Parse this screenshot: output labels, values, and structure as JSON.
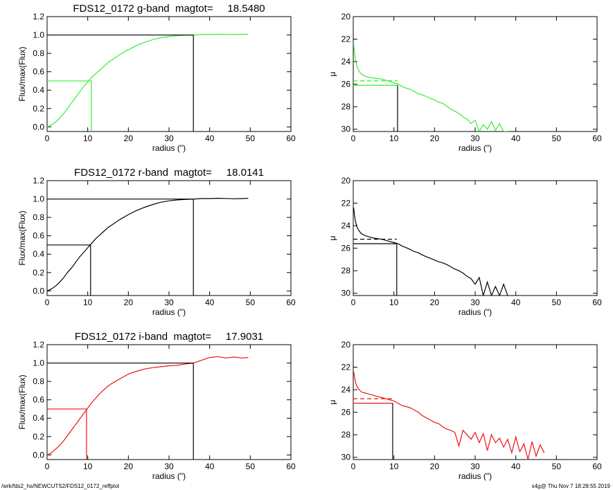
{
  "footer": {
    "left": "/wrk/fds2_hs/NEWCUTS2/FDS12_0172_reffplot",
    "right": "s4g@  Thu Nov  7 18:28:55 2019"
  },
  "chart_data": [
    {
      "type": "line",
      "panel": "growth",
      "band": "g",
      "color": "#33ee33",
      "title": "FDS12_0172 g-band  magtot=     18.5480",
      "xlabel": "radius (\")",
      "ylabel": "Flux/max(Flux)",
      "xlim": [
        0,
        60
      ],
      "ylim": [
        -0.05,
        1.2
      ],
      "xticks": [
        0,
        10,
        20,
        30,
        40,
        50,
        60
      ],
      "yticks": [
        0.0,
        0.2,
        0.4,
        0.6,
        0.8,
        1.0,
        1.2
      ],
      "series": [
        {
          "x": [
            0,
            1,
            2,
            3,
            4,
            5,
            6,
            7,
            8,
            9,
            10,
            11,
            12,
            13,
            14,
            15,
            16,
            18,
            20,
            22,
            24,
            26,
            28,
            30,
            32,
            34,
            36,
            38,
            40,
            42,
            44,
            46,
            48,
            49.5
          ],
          "y": [
            0,
            0.02,
            0.05,
            0.09,
            0.14,
            0.2,
            0.26,
            0.32,
            0.38,
            0.44,
            0.49,
            0.54,
            0.58,
            0.62,
            0.66,
            0.7,
            0.73,
            0.79,
            0.84,
            0.885,
            0.92,
            0.95,
            0.97,
            0.985,
            0.993,
            0.998,
            1.0,
            1.005,
            1.005,
            1.008,
            1.006,
            1.005,
            1.007,
            1.008
          ]
        }
      ],
      "guides": {
        "r_half": 10.9,
        "half": 0.5,
        "r_tot": 36.0,
        "tot": 1.0
      }
    },
    {
      "type": "line",
      "panel": "profile",
      "band": "g",
      "color": "#33ee33",
      "xlabel": "radius (\")",
      "ylabel": "μ",
      "xlim": [
        0,
        60
      ],
      "ylim": [
        30.2,
        20
      ],
      "xticks": [
        0,
        10,
        20,
        30,
        40,
        50,
        60
      ],
      "yticks": [
        20,
        22,
        24,
        26,
        28,
        30
      ],
      "series": [
        {
          "x": [
            0.1,
            0.3,
            0.6,
            1,
            1.5,
            2,
            3,
            4,
            5,
            6,
            7,
            8,
            9,
            10,
            11,
            12,
            13,
            14,
            15,
            16,
            17,
            18,
            19,
            20,
            21,
            22,
            23,
            24,
            25,
            26,
            27,
            28,
            29,
            30,
            31,
            32,
            33,
            34,
            35,
            36,
            37,
            38
          ],
          "y": [
            22.5,
            23.3,
            23.9,
            24.5,
            24.9,
            25.1,
            25.3,
            25.4,
            25.45,
            25.5,
            25.55,
            25.65,
            25.75,
            25.9,
            26.0,
            26.2,
            26.35,
            26.45,
            26.65,
            26.85,
            26.95,
            27.1,
            27.25,
            27.4,
            27.6,
            27.7,
            27.95,
            28.2,
            28.4,
            28.6,
            28.9,
            29.1,
            29.5,
            29.2,
            30.2,
            29.6,
            30.0,
            29.3,
            30.1,
            29.5,
            30.2,
            30.2
          ]
        }
      ],
      "guides": {
        "r_eff": 10.9,
        "mu_eff": 26.1,
        "mu_mean": 25.7
      }
    },
    {
      "type": "line",
      "panel": "growth",
      "band": "r",
      "color": "#000000",
      "title": "FDS12_0172 r-band  magtot=     18.0141",
      "xlabel": "radius (\")",
      "ylabel": "Flux/max(Flux)",
      "xlim": [
        0,
        60
      ],
      "ylim": [
        -0.05,
        1.2
      ],
      "xticks": [
        0,
        10,
        20,
        30,
        40,
        50,
        60
      ],
      "yticks": [
        0.0,
        0.2,
        0.4,
        0.6,
        0.8,
        1.0,
        1.2
      ],
      "series": [
        {
          "x": [
            0,
            1,
            2,
            3,
            4,
            5,
            6,
            7,
            8,
            9,
            10,
            11,
            12,
            13,
            14,
            15,
            16,
            18,
            20,
            22,
            24,
            26,
            28,
            30,
            32,
            34,
            36,
            38,
            40,
            42,
            44,
            46,
            48,
            49.5
          ],
          "y": [
            0,
            0.02,
            0.05,
            0.09,
            0.14,
            0.2,
            0.25,
            0.31,
            0.37,
            0.42,
            0.47,
            0.52,
            0.57,
            0.61,
            0.65,
            0.69,
            0.72,
            0.78,
            0.83,
            0.875,
            0.91,
            0.94,
            0.965,
            0.98,
            0.99,
            0.995,
            1.0,
            1.005,
            1.005,
            1.008,
            1.006,
            1.003,
            1.005,
            1.008
          ]
        }
      ],
      "guides": {
        "r_half": 10.7,
        "half": 0.5,
        "r_tot": 36.0,
        "tot": 1.0
      }
    },
    {
      "type": "line",
      "panel": "profile",
      "band": "r",
      "color": "#000000",
      "xlabel": "radius (\")",
      "ylabel": "μ",
      "xlim": [
        0,
        60
      ],
      "ylim": [
        30.2,
        20
      ],
      "xticks": [
        0,
        10,
        20,
        30,
        40,
        50,
        60
      ],
      "yticks": [
        20,
        22,
        24,
        26,
        28,
        30
      ],
      "series": [
        {
          "x": [
            0.1,
            0.3,
            0.6,
            1,
            1.5,
            2,
            3,
            4,
            5,
            6,
            7,
            8,
            9,
            10,
            11,
            12,
            13,
            14,
            15,
            16,
            17,
            18,
            19,
            20,
            21,
            22,
            23,
            24,
            25,
            26,
            27,
            28,
            29,
            30,
            31,
            32,
            33,
            34,
            35,
            36,
            37,
            38
          ],
          "y": [
            22.4,
            23.1,
            23.7,
            24.2,
            24.5,
            24.7,
            24.9,
            25.0,
            25.1,
            25.15,
            25.2,
            25.3,
            25.4,
            25.5,
            25.6,
            25.8,
            25.95,
            26.1,
            26.3,
            26.4,
            26.6,
            26.75,
            26.9,
            27.05,
            27.2,
            27.3,
            27.45,
            27.65,
            27.85,
            28.0,
            28.2,
            28.5,
            28.7,
            29.2,
            28.6,
            30.2,
            29.0,
            30.2,
            29.4,
            30.2,
            29.2,
            30.2
          ]
        }
      ],
      "guides": {
        "r_eff": 10.7,
        "mu_eff": 25.6,
        "mu_mean": 25.2
      }
    },
    {
      "type": "line",
      "panel": "growth",
      "band": "i",
      "color": "#ee1111",
      "title": "FDS12_0172 i-band  magtot=     17.9031",
      "xlabel": "radius (\")",
      "ylabel": "Flux/max(Flux)",
      "xlim": [
        0,
        60
      ],
      "ylim": [
        -0.05,
        1.2
      ],
      "xticks": [
        0,
        10,
        20,
        30,
        40,
        50,
        60
      ],
      "yticks": [
        0.0,
        0.2,
        0.4,
        0.6,
        0.8,
        1.0,
        1.2
      ],
      "series": [
        {
          "x": [
            0,
            1,
            2,
            3,
            4,
            5,
            6,
            7,
            8,
            9,
            10,
            11,
            12,
            13,
            14,
            15,
            16,
            18,
            20,
            22,
            24,
            26,
            28,
            30,
            32,
            34,
            36,
            38,
            40,
            42,
            44,
            46,
            48,
            49.5
          ],
          "y": [
            0,
            0.02,
            0.06,
            0.1,
            0.15,
            0.21,
            0.27,
            0.33,
            0.39,
            0.45,
            0.51,
            0.57,
            0.62,
            0.67,
            0.71,
            0.75,
            0.78,
            0.83,
            0.88,
            0.91,
            0.935,
            0.95,
            0.96,
            0.97,
            0.975,
            0.99,
            1.0,
            1.03,
            1.06,
            1.07,
            1.055,
            1.065,
            1.055,
            1.06
          ]
        }
      ],
      "guides": {
        "r_half": 9.7,
        "half": 0.5,
        "r_tot": 36.0,
        "tot": 1.0
      }
    },
    {
      "type": "line",
      "panel": "profile",
      "band": "i",
      "color": "#ee1111",
      "xlabel": "radius (\")",
      "ylabel": "μ",
      "xlim": [
        0,
        60
      ],
      "ylim": [
        30.2,
        20
      ],
      "xticks": [
        0,
        10,
        20,
        30,
        40,
        50,
        60
      ],
      "yticks": [
        20,
        22,
        24,
        26,
        28,
        30
      ],
      "series": [
        {
          "x": [
            0.1,
            0.3,
            0.6,
            1,
            1.5,
            2,
            3,
            4,
            5,
            6,
            7,
            8,
            9,
            10,
            11,
            12,
            13,
            14,
            15,
            16,
            17,
            18,
            19,
            20,
            21,
            22,
            23,
            24,
            25,
            26,
            27,
            28,
            29,
            30,
            31,
            32,
            33,
            34,
            35,
            36,
            37,
            38,
            39,
            40,
            41,
            42,
            43,
            44,
            45,
            46,
            47
          ],
          "y": [
            22.4,
            22.9,
            23.4,
            23.8,
            24.0,
            24.2,
            24.3,
            24.4,
            24.5,
            24.6,
            24.7,
            24.8,
            24.9,
            25.0,
            25.2,
            25.4,
            25.5,
            25.6,
            25.8,
            26.0,
            26.3,
            26.5,
            26.7,
            26.9,
            27.0,
            27.3,
            27.5,
            27.6,
            27.8,
            29.0,
            27.6,
            28.0,
            28.4,
            27.8,
            28.7,
            27.9,
            29.4,
            28.0,
            28.7,
            28.3,
            29.1,
            28.4,
            29.6,
            28.2,
            29.5,
            28.8,
            30.2,
            28.6,
            29.9,
            28.9,
            29.6
          ]
        }
      ],
      "guides": {
        "r_eff": 9.7,
        "mu_eff": 25.2,
        "mu_mean": 24.8
      }
    }
  ]
}
